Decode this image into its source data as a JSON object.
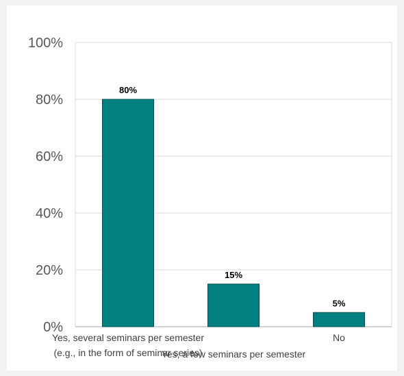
{
  "chart_data": {
    "type": "bar",
    "categories": [
      [
        "Yes, several seminars per semester",
        "(e.g., in the form of seminar series)"
      ],
      [
        "Yes, a few seminars per semester"
      ],
      [
        "No"
      ]
    ],
    "values": [
      80,
      15,
      5
    ],
    "data_labels": [
      "80%",
      "15%",
      "5%"
    ],
    "y_ticks": [
      "0%",
      "20%",
      "40%",
      "60%",
      "80%",
      "100%"
    ],
    "ylim": [
      0,
      100
    ],
    "grid": true,
    "legend": "none",
    "title": "",
    "xlabel": "",
    "ylabel": "",
    "colors": {
      "bar": "#008080",
      "bar_stroke": "#0a4f4f",
      "grid": "#d9d9d9",
      "axis": "#a6a6a6"
    }
  }
}
